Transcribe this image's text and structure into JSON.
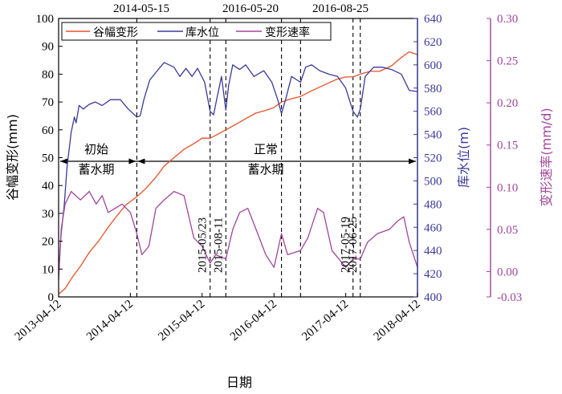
{
  "chart_data": {
    "type": "line",
    "xlabel": "日期",
    "x_ticks": [
      "2013-04-12",
      "2014-04-12",
      "2015-04-12",
      "2016-04-12",
      "2017-04-12",
      "2018-04-12"
    ],
    "left_axis": {
      "label": "谷幅变形(mm)",
      "range": [
        0,
        100
      ],
      "ticks": [
        "0",
        "10",
        "20",
        "30",
        "40",
        "50",
        "60",
        "70",
        "80",
        "90",
        "100"
      ],
      "color": "#000000"
    },
    "right_axis_1": {
      "label": "库水位(m)",
      "range": [
        400,
        640
      ],
      "ticks": [
        "400",
        "420",
        "440",
        "460",
        "480",
        "500",
        "520",
        "540",
        "560",
        "580",
        "600",
        "620",
        "640"
      ],
      "color": "#3a3a9a"
    },
    "right_axis_2": {
      "label": "变形速率(mm/d)",
      "range": [
        -0.03,
        0.3
      ],
      "ticks": [
        "-0.03",
        "0.00",
        "0.05",
        "0.10",
        "0.15",
        "0.20",
        "0.25",
        "0.30"
      ],
      "color": "#a0469a"
    },
    "legend": {
      "position": "top-left",
      "entries": [
        "谷幅变形",
        "库水位",
        "变形速率"
      ]
    },
    "top_date_labels": [
      "2014-05-15",
      "2016-05-20",
      "2016-08-25"
    ],
    "vertical_date_labels": [
      "2015-05/23",
      "2015-08-11",
      "2017-05-19",
      "2017-06-25"
    ],
    "period_labels": {
      "initial_line1": "初始",
      "initial_line2": "蓄水期",
      "normal_line1": "正常",
      "normal_line2": "蓄水期"
    },
    "series": [
      {
        "name": "谷幅变形",
        "color": "#e8502a",
        "axis": "left",
        "points": [
          [
            "2013-04-12",
            1
          ],
          [
            "2013-05-15",
            3
          ],
          [
            "2013-06-20",
            7
          ],
          [
            "2013-08-01",
            11
          ],
          [
            "2013-09-15",
            16
          ],
          [
            "2013-11-01",
            20
          ],
          [
            "2013-12-20",
            25
          ],
          [
            "2014-02-01",
            29
          ],
          [
            "2014-03-20",
            33
          ],
          [
            "2014-05-15",
            36
          ],
          [
            "2014-07-01",
            39
          ],
          [
            "2014-08-20",
            43
          ],
          [
            "2014-10-01",
            47
          ],
          [
            "2014-11-20",
            50
          ],
          [
            "2015-01-10",
            53
          ],
          [
            "2015-03-01",
            55
          ],
          [
            "2015-04-12",
            57
          ],
          [
            "2015-05-23",
            57
          ],
          [
            "2015-06-20",
            58
          ],
          [
            "2015-08-11",
            60
          ],
          [
            "2015-10-01",
            62
          ],
          [
            "2015-11-20",
            64
          ],
          [
            "2016-01-10",
            66
          ],
          [
            "2016-03-01",
            67
          ],
          [
            "2016-04-12",
            68
          ],
          [
            "2016-05-20",
            70
          ],
          [
            "2016-07-01",
            71
          ],
          [
            "2016-08-25",
            72
          ],
          [
            "2016-10-20",
            74
          ],
          [
            "2016-12-20",
            76
          ],
          [
            "2017-02-20",
            78
          ],
          [
            "2017-04-12",
            79
          ],
          [
            "2017-05-19",
            79
          ],
          [
            "2017-06-25",
            80
          ],
          [
            "2017-08-15",
            81
          ],
          [
            "2017-10-01",
            81
          ],
          [
            "2017-12-01",
            83
          ],
          [
            "2018-01-20",
            86
          ],
          [
            "2018-03-01",
            88
          ],
          [
            "2018-04-12",
            87
          ]
        ]
      },
      {
        "name": "库水位",
        "color": "#3a3a9a",
        "axis": "right1",
        "points": [
          [
            "2013-04-12",
            420
          ],
          [
            "2013-04-25",
            455
          ],
          [
            "2013-05-10",
            478
          ],
          [
            "2013-05-25",
            512
          ],
          [
            "2013-06-15",
            542
          ],
          [
            "2013-07-01",
            555
          ],
          [
            "2013-07-10",
            550
          ],
          [
            "2013-07-25",
            565
          ],
          [
            "2013-08-15",
            562
          ],
          [
            "2013-09-15",
            566
          ],
          [
            "2013-10-15",
            568
          ],
          [
            "2013-11-20",
            565
          ],
          [
            "2014-01-01",
            570
          ],
          [
            "2014-02-20",
            570
          ],
          [
            "2014-04-01",
            562
          ],
          [
            "2014-05-15",
            555
          ],
          [
            "2014-06-01",
            556
          ],
          [
            "2014-06-20",
            570
          ],
          [
            "2014-07-20",
            587
          ],
          [
            "2014-09-01",
            596
          ],
          [
            "2014-10-01",
            602
          ],
          [
            "2014-11-20",
            598
          ],
          [
            "2014-12-20",
            590
          ],
          [
            "2015-01-20",
            597
          ],
          [
            "2015-02-20",
            590
          ],
          [
            "2015-03-20",
            597
          ],
          [
            "2015-04-25",
            585
          ],
          [
            "2015-05-23",
            560
          ],
          [
            "2015-06-10",
            557
          ],
          [
            "2015-06-25",
            570
          ],
          [
            "2015-07-20",
            590
          ],
          [
            "2015-08-11",
            561
          ],
          [
            "2015-08-25",
            582
          ],
          [
            "2015-09-15",
            600
          ],
          [
            "2015-10-20",
            596
          ],
          [
            "2015-11-20",
            600
          ],
          [
            "2016-01-01",
            590
          ],
          [
            "2016-02-20",
            595
          ],
          [
            "2016-04-01",
            585
          ],
          [
            "2016-05-01",
            570
          ],
          [
            "2016-05-20",
            558
          ],
          [
            "2016-06-10",
            570
          ],
          [
            "2016-07-10",
            590
          ],
          [
            "2016-08-25",
            585
          ],
          [
            "2016-09-20",
            598
          ],
          [
            "2016-10-20",
            600
          ],
          [
            "2016-12-01",
            595
          ],
          [
            "2017-01-15",
            592
          ],
          [
            "2017-03-01",
            590
          ],
          [
            "2017-04-12",
            580
          ],
          [
            "2017-05-19",
            560
          ],
          [
            "2017-06-10",
            555
          ],
          [
            "2017-06-25",
            562
          ],
          [
            "2017-07-20",
            590
          ],
          [
            "2017-09-01",
            598
          ],
          [
            "2017-10-15",
            598
          ],
          [
            "2017-12-01",
            596
          ],
          [
            "2018-01-20",
            592
          ],
          [
            "2018-03-01",
            578
          ],
          [
            "2018-04-12",
            577
          ]
        ]
      },
      {
        "name": "变形速率",
        "color": "#a0469a",
        "axis": "right2",
        "points": [
          [
            "2013-04-12",
            -0.01
          ],
          [
            "2013-04-25",
            0.05
          ],
          [
            "2013-05-15",
            0.08
          ],
          [
            "2013-06-15",
            0.095
          ],
          [
            "2013-08-01",
            0.085
          ],
          [
            "2013-09-15",
            0.095
          ],
          [
            "2013-10-20",
            0.08
          ],
          [
            "2013-11-20",
            0.09
          ],
          [
            "2013-12-20",
            0.07
          ],
          [
            "2014-01-25",
            0.075
          ],
          [
            "2014-03-01",
            0.08
          ],
          [
            "2014-04-12",
            0.07
          ],
          [
            "2014-05-15",
            0.045
          ],
          [
            "2014-06-10",
            0.02
          ],
          [
            "2014-07-15",
            0.03
          ],
          [
            "2014-08-20",
            0.075
          ],
          [
            "2014-10-01",
            0.085
          ],
          [
            "2014-11-20",
            0.095
          ],
          [
            "2015-01-10",
            0.09
          ],
          [
            "2015-03-01",
            0.04
          ],
          [
            "2015-04-12",
            0.03
          ],
          [
            "2015-05-23",
            0.01
          ],
          [
            "2015-06-20",
            0.02
          ],
          [
            "2015-08-11",
            0.015
          ],
          [
            "2015-09-15",
            0.05
          ],
          [
            "2015-10-20",
            0.07
          ],
          [
            "2015-12-01",
            0.075
          ],
          [
            "2016-01-20",
            0.045
          ],
          [
            "2016-03-01",
            0.02
          ],
          [
            "2016-04-12",
            0.005
          ],
          [
            "2016-05-20",
            0.045
          ],
          [
            "2016-06-20",
            0.02
          ],
          [
            "2016-08-25",
            0.025
          ],
          [
            "2016-10-01",
            0.04
          ],
          [
            "2016-11-20",
            0.075
          ],
          [
            "2016-12-20",
            0.07
          ],
          [
            "2017-02-01",
            0.025
          ],
          [
            "2017-04-12",
            0.005
          ],
          [
            "2017-05-19",
            0.015
          ],
          [
            "2017-06-25",
            0.015
          ],
          [
            "2017-08-01",
            0.035
          ],
          [
            "2017-09-20",
            0.045
          ],
          [
            "2017-11-20",
            0.05
          ],
          [
            "2018-01-01",
            0.06
          ],
          [
            "2018-02-01",
            0.065
          ],
          [
            "2018-03-01",
            0.035
          ],
          [
            "2018-04-12",
            0.005
          ]
        ]
      }
    ],
    "markers": [
      "2014-05-15",
      "2015-05-23",
      "2015-08-11",
      "2016-05-20",
      "2016-08-25",
      "2017-05-19",
      "2017-06-25"
    ],
    "grid": false
  }
}
